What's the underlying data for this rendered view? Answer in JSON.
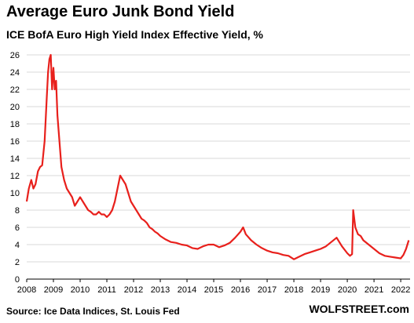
{
  "chart_data": {
    "type": "line",
    "title": "Average Euro Junk Bond Yield",
    "subtitle": "ICE BofA Euro High Yield Index Effective Yield, %",
    "xlabel": "",
    "ylabel": "",
    "xlim": [
      2008,
      2022.35
    ],
    "ylim": [
      0,
      26
    ],
    "y_ticks": [
      "0",
      "2",
      "4",
      "6",
      "8",
      "10",
      "12",
      "14",
      "16",
      "18",
      "20",
      "22",
      "24",
      "26"
    ],
    "x_ticks": [
      "2008",
      "2009",
      "2010",
      "2011",
      "2012",
      "2013",
      "2014",
      "2015",
      "2016",
      "2017",
      "2018",
      "2019",
      "2020",
      "2021",
      "2022"
    ],
    "grid": true,
    "line_color": "#e8201c",
    "series": [
      {
        "x": [
          2008.0,
          2008.08,
          2008.17,
          2008.25,
          2008.33,
          2008.42,
          2008.5,
          2008.58,
          2008.67,
          2008.75,
          2008.8,
          2008.85,
          2008.9,
          2008.95,
          2009.0,
          2009.05,
          2009.1,
          2009.15,
          2009.2,
          2009.25,
          2009.3,
          2009.4,
          2009.5,
          2009.6,
          2009.7,
          2009.8,
          2009.9,
          2010.0,
          2010.1,
          2010.2,
          2010.3,
          2010.4,
          2010.5,
          2010.6,
          2010.7,
          2010.8,
          2010.9,
          2011.0,
          2011.1,
          2011.2,
          2011.3,
          2011.4,
          2011.5,
          2011.6,
          2011.7,
          2011.8,
          2011.9,
          2012.0,
          2012.1,
          2012.2,
          2012.3,
          2012.4,
          2012.5,
          2012.6,
          2012.7,
          2012.8,
          2012.9,
          2013.0,
          2013.2,
          2013.4,
          2013.6,
          2013.8,
          2014.0,
          2014.2,
          2014.4,
          2014.6,
          2014.8,
          2015.0,
          2015.2,
          2015.4,
          2015.6,
          2015.8,
          2016.0,
          2016.1,
          2016.2,
          2016.4,
          2016.6,
          2016.8,
          2017.0,
          2017.2,
          2017.4,
          2017.6,
          2017.8,
          2018.0,
          2018.2,
          2018.4,
          2018.6,
          2018.8,
          2018.9,
          2019.0,
          2019.2,
          2019.4,
          2019.6,
          2019.8,
          2020.0,
          2020.1,
          2020.18,
          2020.22,
          2020.3,
          2020.4,
          2020.5,
          2020.6,
          2020.8,
          2021.0,
          2021.2,
          2021.4,
          2021.6,
          2021.8,
          2022.0,
          2022.1,
          2022.2,
          2022.3
        ],
        "y": [
          9.0,
          10.5,
          11.5,
          10.5,
          11.0,
          12.5,
          13.0,
          13.2,
          16.0,
          21.0,
          24.0,
          25.5,
          26.0,
          22.0,
          24.5,
          22.0,
          23.0,
          19.0,
          17.0,
          15.0,
          13.0,
          11.5,
          10.5,
          10.0,
          9.5,
          8.5,
          9.0,
          9.5,
          9.0,
          8.5,
          8.0,
          7.8,
          7.5,
          7.5,
          7.8,
          7.5,
          7.5,
          7.2,
          7.5,
          8.0,
          9.0,
          10.5,
          12.0,
          11.5,
          11.0,
          10.0,
          9.0,
          8.5,
          8.0,
          7.5,
          7.0,
          6.8,
          6.5,
          6.0,
          5.8,
          5.5,
          5.3,
          5.0,
          4.6,
          4.3,
          4.2,
          4.0,
          3.9,
          3.6,
          3.5,
          3.8,
          4.0,
          4.0,
          3.7,
          3.9,
          4.2,
          4.8,
          5.5,
          6.0,
          5.2,
          4.5,
          4.0,
          3.6,
          3.3,
          3.1,
          3.0,
          2.8,
          2.7,
          2.3,
          2.6,
          2.9,
          3.1,
          3.3,
          3.4,
          3.5,
          3.8,
          4.3,
          4.8,
          3.8,
          3.0,
          2.7,
          2.9,
          8.0,
          6.0,
          5.2,
          5.0,
          4.5,
          4.0,
          3.5,
          3.0,
          2.7,
          2.6,
          2.5,
          2.4,
          2.8,
          3.5,
          4.5
        ]
      }
    ]
  },
  "source": "Source: Ice Data Indices, St. Louis Fed",
  "brand": "WOLFSTREET.com"
}
